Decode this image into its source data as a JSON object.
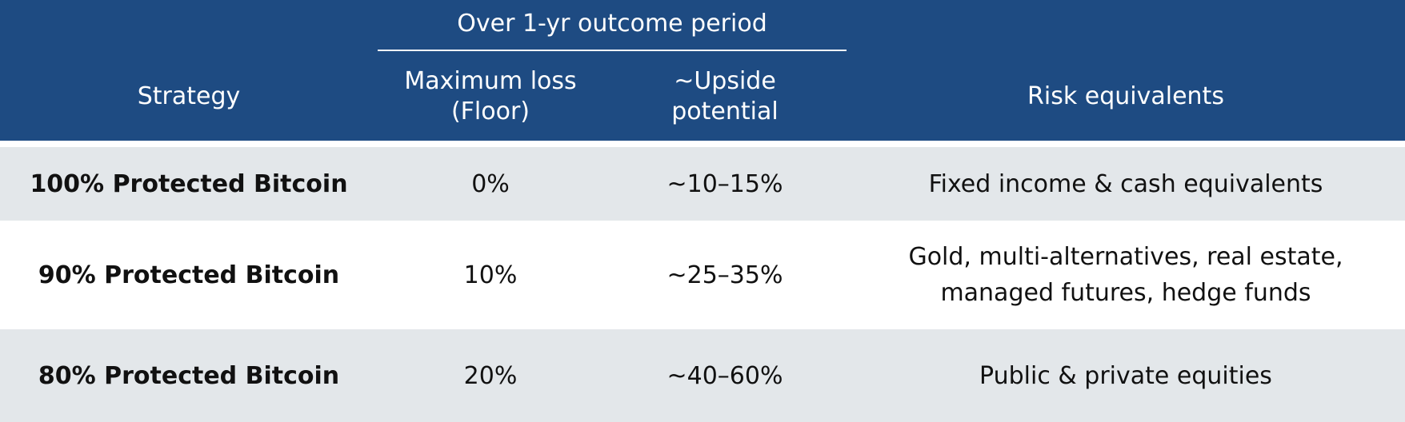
{
  "header": {
    "group_label": "Over 1-yr outcome period",
    "columns": {
      "strategy": "Strategy",
      "max_loss_line1": "Maximum loss",
      "max_loss_line2": "(Floor)",
      "upside_line1": "~Upside",
      "upside_line2": "potential",
      "risk": "Risk equivalents"
    }
  },
  "rows": [
    {
      "strategy": "100% Protected Bitcoin",
      "max_loss": "0%",
      "upside": "~10–15%",
      "risk_line1": "Fixed income & cash equivalents",
      "risk_line2": ""
    },
    {
      "strategy": "90% Protected Bitcoin",
      "max_loss": "10%",
      "upside": "~25–35%",
      "risk_line1": "Gold, multi-alternatives, real estate,",
      "risk_line2": "managed futures, hedge funds"
    },
    {
      "strategy": "80% Protected Bitcoin",
      "max_loss": "20%",
      "upside": "~40–60%",
      "risk_line1": "Public & private equities",
      "risk_line2": ""
    }
  ],
  "colors": {
    "header_bg": "#1e4b82",
    "stripe_bg": "#e3e7ea",
    "text": "#111111"
  }
}
